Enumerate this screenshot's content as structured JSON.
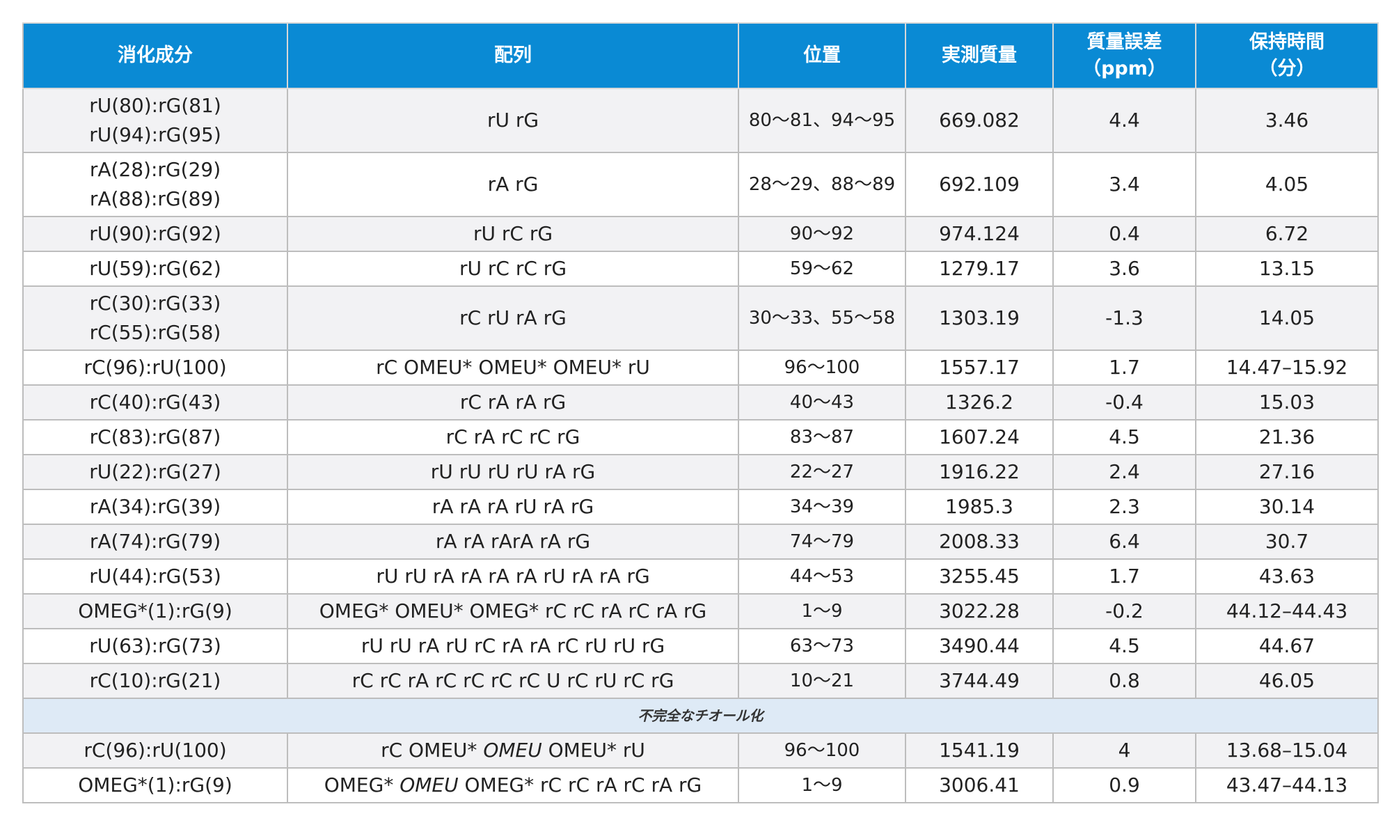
{
  "table": {
    "headers": [
      {
        "line1": "消化成分",
        "line2": ""
      },
      {
        "line1": "配列",
        "line2": ""
      },
      {
        "line1": "位置",
        "line2": ""
      },
      {
        "line1": "実測質量",
        "line2": ""
      },
      {
        "line1": "質量誤差",
        "line2": "（ppm）"
      },
      {
        "line1": "保持時間",
        "line2": "（分）"
      }
    ],
    "rows": [
      {
        "component": [
          "rU(80):rG(81)",
          "rU(94):rG(95)"
        ],
        "sequence": "rU rG",
        "position": "80～81、94～95",
        "mass": "669.082",
        "error": "4.4",
        "time": "3.46"
      },
      {
        "component": [
          "rA(28):rG(29)",
          "rA(88):rG(89)"
        ],
        "sequence": "rA rG",
        "position": "28～29、88～89",
        "mass": "692.109",
        "error": "3.4",
        "time": "4.05"
      },
      {
        "component": [
          "rU(90):rG(92)"
        ],
        "sequence": "rU rC rG",
        "position": "90～92",
        "mass": "974.124",
        "error": "0.4",
        "time": "6.72"
      },
      {
        "component": [
          "rU(59):rG(62)"
        ],
        "sequence": "rU rC rC rG",
        "position": "59～62",
        "mass": "1279.17",
        "error": "3.6",
        "time": "13.15"
      },
      {
        "component": [
          "rC(30):rG(33)",
          "rC(55):rG(58)"
        ],
        "sequence": "rC rU rA rG",
        "position": "30～33、55～58",
        "mass": "1303.19",
        "error": "-1.3",
        "time": "14.05"
      },
      {
        "component": [
          "rC(96):rU(100)"
        ],
        "sequence": "rC OMEU* OMEU* OMEU* rU",
        "position": "96～100",
        "mass": "1557.17",
        "error": "1.7",
        "time": "14.47–15.92"
      },
      {
        "component": [
          "rC(40):rG(43)"
        ],
        "sequence": "rC rA rA rG",
        "position": "40～43",
        "mass": "1326.2",
        "error": "-0.4",
        "time": "15.03"
      },
      {
        "component": [
          "rC(83):rG(87)"
        ],
        "sequence": "rC rA rC rC rG",
        "position": "83～87",
        "mass": "1607.24",
        "error": "4.5",
        "time": "21.36"
      },
      {
        "component": [
          "rU(22):rG(27)"
        ],
        "sequence": "rU rU rU rU rA rG",
        "position": "22～27",
        "mass": "1916.22",
        "error": "2.4",
        "time": "27.16"
      },
      {
        "component": [
          "rA(34):rG(39)"
        ],
        "sequence": "rA rA rA rU rA rG",
        "position": "34～39",
        "mass": "1985.3",
        "error": "2.3",
        "time": "30.14"
      },
      {
        "component": [
          "rA(74):rG(79)"
        ],
        "sequence": "rA rA rArA rA rG",
        "position": "74～79",
        "mass": "2008.33",
        "error": "6.4",
        "time": "30.7"
      },
      {
        "component": [
          "rU(44):rG(53)"
        ],
        "sequence": "rU rU rA rA rA rA rU rA rA rG",
        "position": "44～53",
        "mass": "3255.45",
        "error": "1.7",
        "time": "43.63"
      },
      {
        "component": [
          "OMEG*(1):rG(9)"
        ],
        "sequence": "OMEG* OMEU* OMEG* rC rC rA rC rA rG",
        "position": "1～9",
        "mass": "3022.28",
        "error": "-0.2",
        "time": "44.12–44.43"
      },
      {
        "component": [
          "rU(63):rG(73)"
        ],
        "sequence": "rU rU rA rU rC rA rA rC rU rU rG",
        "position": "63～73",
        "mass": "3490.44",
        "error": "4.5",
        "time": "44.67"
      },
      {
        "component": [
          "rC(10):rG(21)"
        ],
        "sequence": "rC rC rA rC rC rC rC U rC rU rC rG",
        "position": "10～21",
        "mass": "3744.49",
        "error": "0.8",
        "time": "46.05"
      }
    ],
    "section_label": "不完全なチオール化",
    "incomplete_rows": [
      {
        "component": "rC(96):rU(100)",
        "seq_before": "rC OMEU* ",
        "seq_italic": "OMEU",
        "seq_after": " OMEU* rU",
        "position": "96～100",
        "mass": "1541.19",
        "error": "4",
        "time": "13.68–15.04"
      },
      {
        "component": "OMEG*(1):rG(9)",
        "seq_before": "OMEG* ",
        "seq_italic": "OMEU",
        "seq_after": " OMEG* rC rC rA rC rA rG",
        "position": "1～9",
        "mass": "3006.41",
        "error": "0.9",
        "time": "43.47–44.13"
      }
    ]
  },
  "colors": {
    "header_bg": "#0a8ad4",
    "header_text": "#ffffff",
    "row_shaded": "#f2f2f4",
    "section_bg": "#deeaf6",
    "border": "#bdbdbd"
  }
}
